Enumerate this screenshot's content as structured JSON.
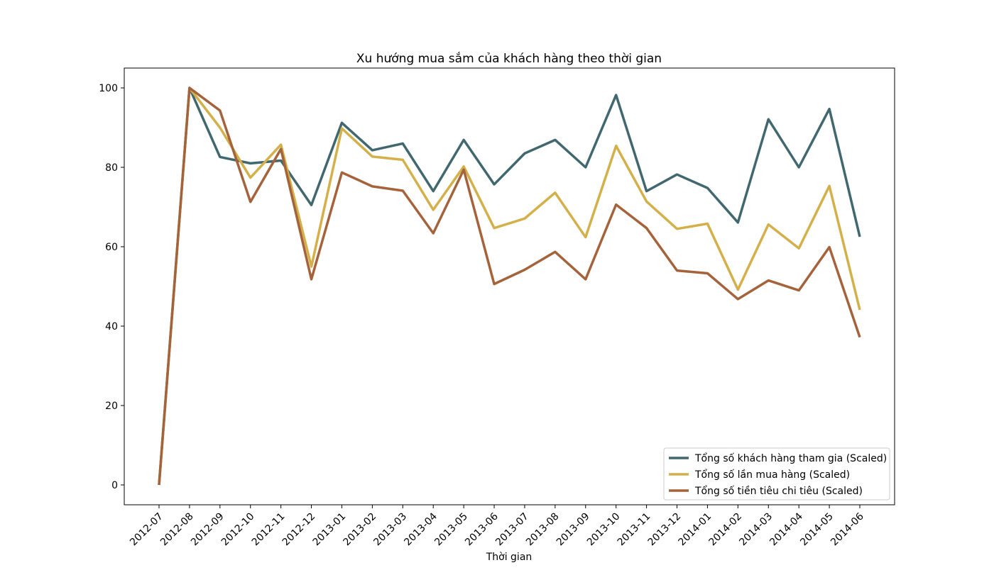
{
  "chart_data": {
    "type": "line",
    "title": "Xu hướng mua sắm của khách hàng theo thời gian",
    "xlabel": "Thời gian",
    "ylabel": "",
    "ylim": [
      -5,
      105
    ],
    "yticks": [
      0,
      20,
      40,
      60,
      80,
      100
    ],
    "grid": false,
    "legend_position": "bottom-right",
    "categories": [
      "2012-07",
      "2012-08",
      "2012-09",
      "2012-10",
      "2012-11",
      "2012-12",
      "2013-01",
      "2013-02",
      "2013-03",
      "2013-04",
      "2013-05",
      "2013-06",
      "2013-07",
      "2013-08",
      "2013-09",
      "2013-10",
      "2013-11",
      "2013-12",
      "2014-01",
      "2014-02",
      "2014-03",
      "2014-04",
      "2014-05",
      "2014-06"
    ],
    "series": [
      {
        "name": "Tổng số khách hàng tham gia (Scaled)",
        "color": "#41676f",
        "values": [
          0,
          100,
          82.6,
          81,
          81.7,
          70.5,
          91.2,
          84.3,
          86,
          74,
          86.9,
          75.7,
          83.5,
          86.9,
          80,
          98.2,
          74,
          78.2,
          74.8,
          66.1,
          92.1,
          80,
          94.7,
          62.5
        ]
      },
      {
        "name": "Tổng số lần mua hàng (Scaled)",
        "color": "#d4b04b",
        "values": [
          0,
          100,
          90,
          77.4,
          85.7,
          55,
          89.8,
          82.7,
          81.9,
          69.3,
          80.2,
          64.7,
          67.1,
          73.6,
          62.4,
          85.4,
          71.4,
          64.5,
          65.8,
          49.2,
          65.6,
          59.6,
          75.3,
          44.1
        ]
      },
      {
        "name": "Tổng số tiền tiêu chi tiêu (Scaled)",
        "color": "#a5633c",
        "values": [
          0,
          100,
          94.3,
          71.3,
          84.6,
          51.8,
          78.7,
          75.2,
          74.1,
          63.4,
          79.4,
          50.6,
          54.2,
          58.7,
          51.8,
          70.6,
          64.7,
          54,
          53.3,
          46.8,
          51.5,
          49,
          59.9,
          37.2
        ]
      }
    ]
  }
}
